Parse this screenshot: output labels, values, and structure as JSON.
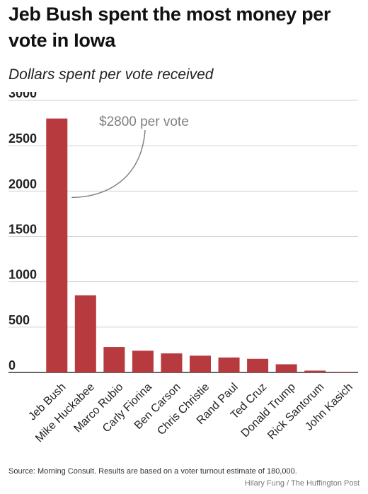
{
  "title": "Jeb Bush spent the most money per vote in Iowa",
  "subtitle": "Dollars spent per vote received",
  "source": "Source: Morning Consult. Results are based on a voter turnout estimate of 180,000.",
  "credit": "Hilary Fung / The Huffington Post",
  "colors": {
    "bar": "#b73a3f",
    "grid": "#d0d0d0",
    "axis": "#333333",
    "annotation": "#808080"
  },
  "chart_data": {
    "type": "bar",
    "title": "Jeb Bush spent the most money per vote in Iowa",
    "subtitle": "Dollars spent per vote received",
    "categories": [
      "Jeb Bush",
      "Mike Huckabee",
      "Marco Rubio",
      "Carly Fiorina",
      "Ben Carson",
      "Chris Christie",
      "Rand Paul",
      "Ted Cruz",
      "Donald Trump",
      "Rick Santorum",
      "John Kasich"
    ],
    "values": [
      2800,
      850,
      280,
      240,
      210,
      185,
      165,
      150,
      90,
      20,
      3
    ],
    "ylim": [
      0,
      3000
    ],
    "yticks": [
      0,
      500,
      1000,
      1500,
      2000,
      2500,
      3000
    ],
    "grid": true,
    "annotation": {
      "text": "$2800 per vote",
      "target": "Jeb Bush"
    }
  }
}
